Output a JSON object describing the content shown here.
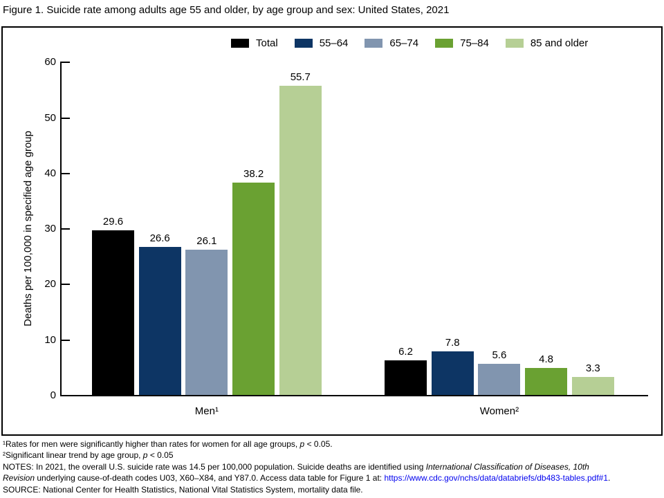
{
  "title": "Figure 1. Suicide rate among adults age 55 and older, by age group and sex: United States, 2021",
  "chart_data": {
    "type": "bar",
    "categories": [
      "Men¹",
      "Women²"
    ],
    "series": [
      {
        "name": "Total",
        "color": "#000000",
        "values": [
          29.6,
          6.2
        ]
      },
      {
        "name": "55–64",
        "color": "#0d3564",
        "values": [
          26.6,
          7.8
        ]
      },
      {
        "name": "65–74",
        "color": "#8195af",
        "values": [
          26.1,
          5.6
        ]
      },
      {
        "name": "75–84",
        "color": "#6aa132",
        "values": [
          38.2,
          4.8
        ]
      },
      {
        "name": "85 and older",
        "color": "#b6cf95",
        "values": [
          55.7,
          3.3
        ]
      }
    ],
    "ylabel": "Deaths per 100,000 in specified age group",
    "xlabel": "",
    "ylim": [
      0,
      60
    ],
    "yticks": [
      0,
      10,
      20,
      30,
      40,
      50,
      60
    ],
    "legend_position": "top",
    "grid": false,
    "value_labels": true
  },
  "link_color": "#0000EE",
  "footnotes": [
    [
      {
        "t": "¹Rates for men were significantly higher than rates for women for all age groups, "
      },
      {
        "t": "p",
        "i": true
      },
      {
        "t": " < 0.05."
      }
    ],
    [
      {
        "t": "²Significant linear trend by age group, "
      },
      {
        "t": "p",
        "i": true
      },
      {
        "t": " < 0.05"
      }
    ],
    [
      {
        "t": "NOTES: In 2021, the overall U.S. suicide rate was 14.5 per 100,000 population. Suicide deaths are identified using "
      },
      {
        "t": "International Classification of Diseases, 10th",
        "i": true
      }
    ],
    [
      {
        "t": "Revision",
        "i": true
      },
      {
        "t": " underlying cause-of-death codes U03, X60–X84, and Y87.0. Access data table for Figure 1 at: "
      },
      {
        "t": "https://www.cdc.gov/nchs/data/databriefs/db483-tables.pdf#1",
        "link": true
      },
      {
        "t": "."
      }
    ],
    [
      {
        "t": "SOURCE: National Center for Health Statistics, National Vital Statistics System, mortality data file."
      }
    ]
  ]
}
